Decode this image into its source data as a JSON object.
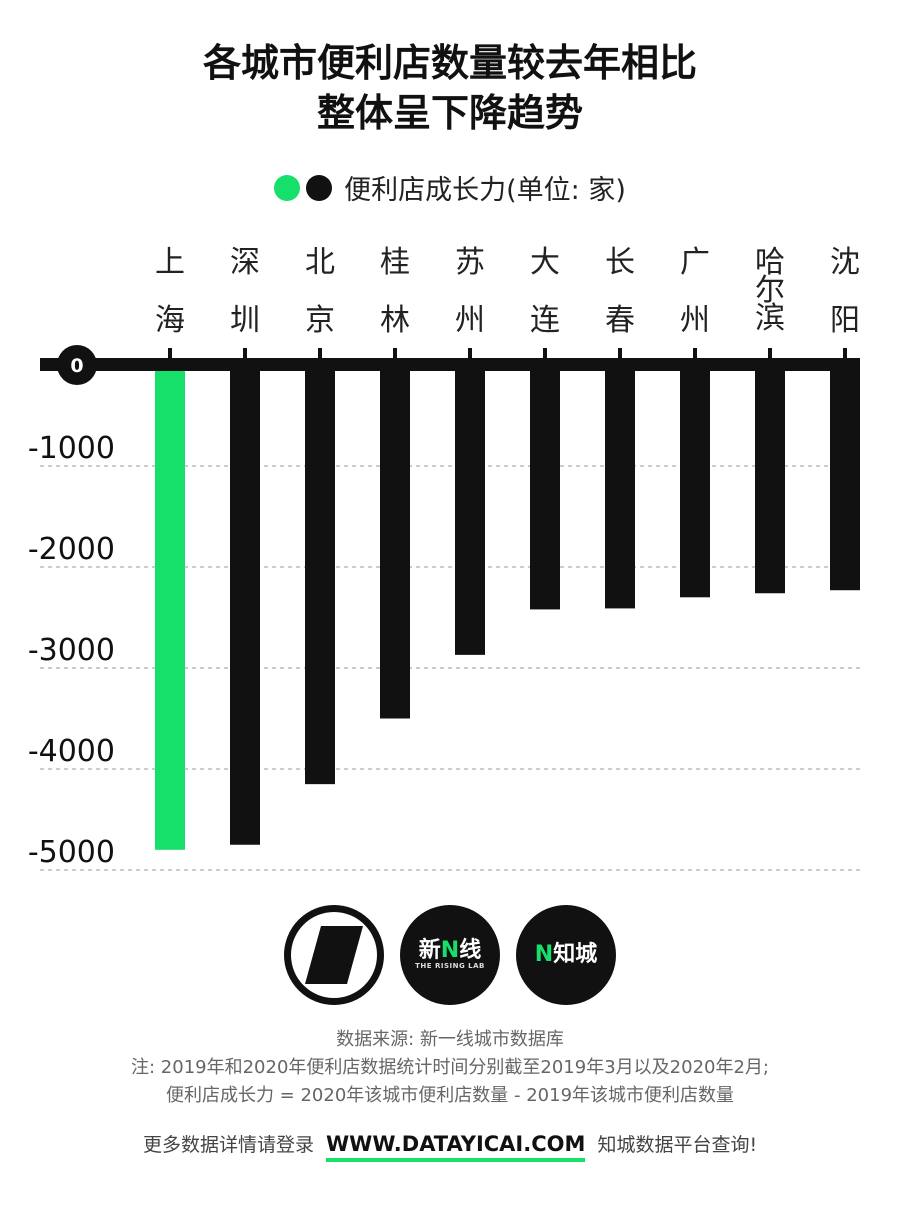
{
  "title": {
    "line1": "各城市便利店数量较去年相比",
    "line2": "整体呈下降趋势"
  },
  "legend": {
    "label": "便利店成长力(单位: 家)",
    "colors": [
      "#16e06a",
      "#111111"
    ]
  },
  "chart_data": {
    "type": "bar",
    "categories": [
      "上海",
      "深圳",
      "北京",
      "桂林",
      "苏州",
      "大连",
      "长春",
      "广州",
      "哈尔滨",
      "沈阳"
    ],
    "values": [
      -4800,
      -4750,
      -4150,
      -3500,
      -2870,
      -2420,
      -2410,
      -2300,
      -2260,
      -2230
    ],
    "ylim": [
      -5000,
      0
    ],
    "yticks": [
      0,
      -1000,
      -2000,
      -3000,
      -4000,
      -5000
    ],
    "ytick_labels": [
      "0",
      "-1000",
      "-2000",
      "-3000",
      "-4000",
      "-5000"
    ],
    "highlight_index": 0,
    "highlight_color": "#16e06a",
    "bar_color": "#111111",
    "grid": true
  },
  "logos": {
    "logo2_main": "新",
    "logo2_accent": "N",
    "logo2_tail": "线",
    "logo2_sub": "THE RISING LAB",
    "logo3_accent": "N",
    "logo3_main": "知城"
  },
  "notes": {
    "source": "数据来源: 新一线城市数据库",
    "note1": "注: 2019年和2020年便利店数据统计时间分别截至2019年3月以及2020年2月;",
    "note2": "便利店成长力 = 2020年该城市便利店数量 - 2019年该城市便利店数量"
  },
  "footer": {
    "prefix": "更多数据详情请登录",
    "url": "WWW.DATAYICAI.COM",
    "suffix": "知城数据平台查询!"
  }
}
